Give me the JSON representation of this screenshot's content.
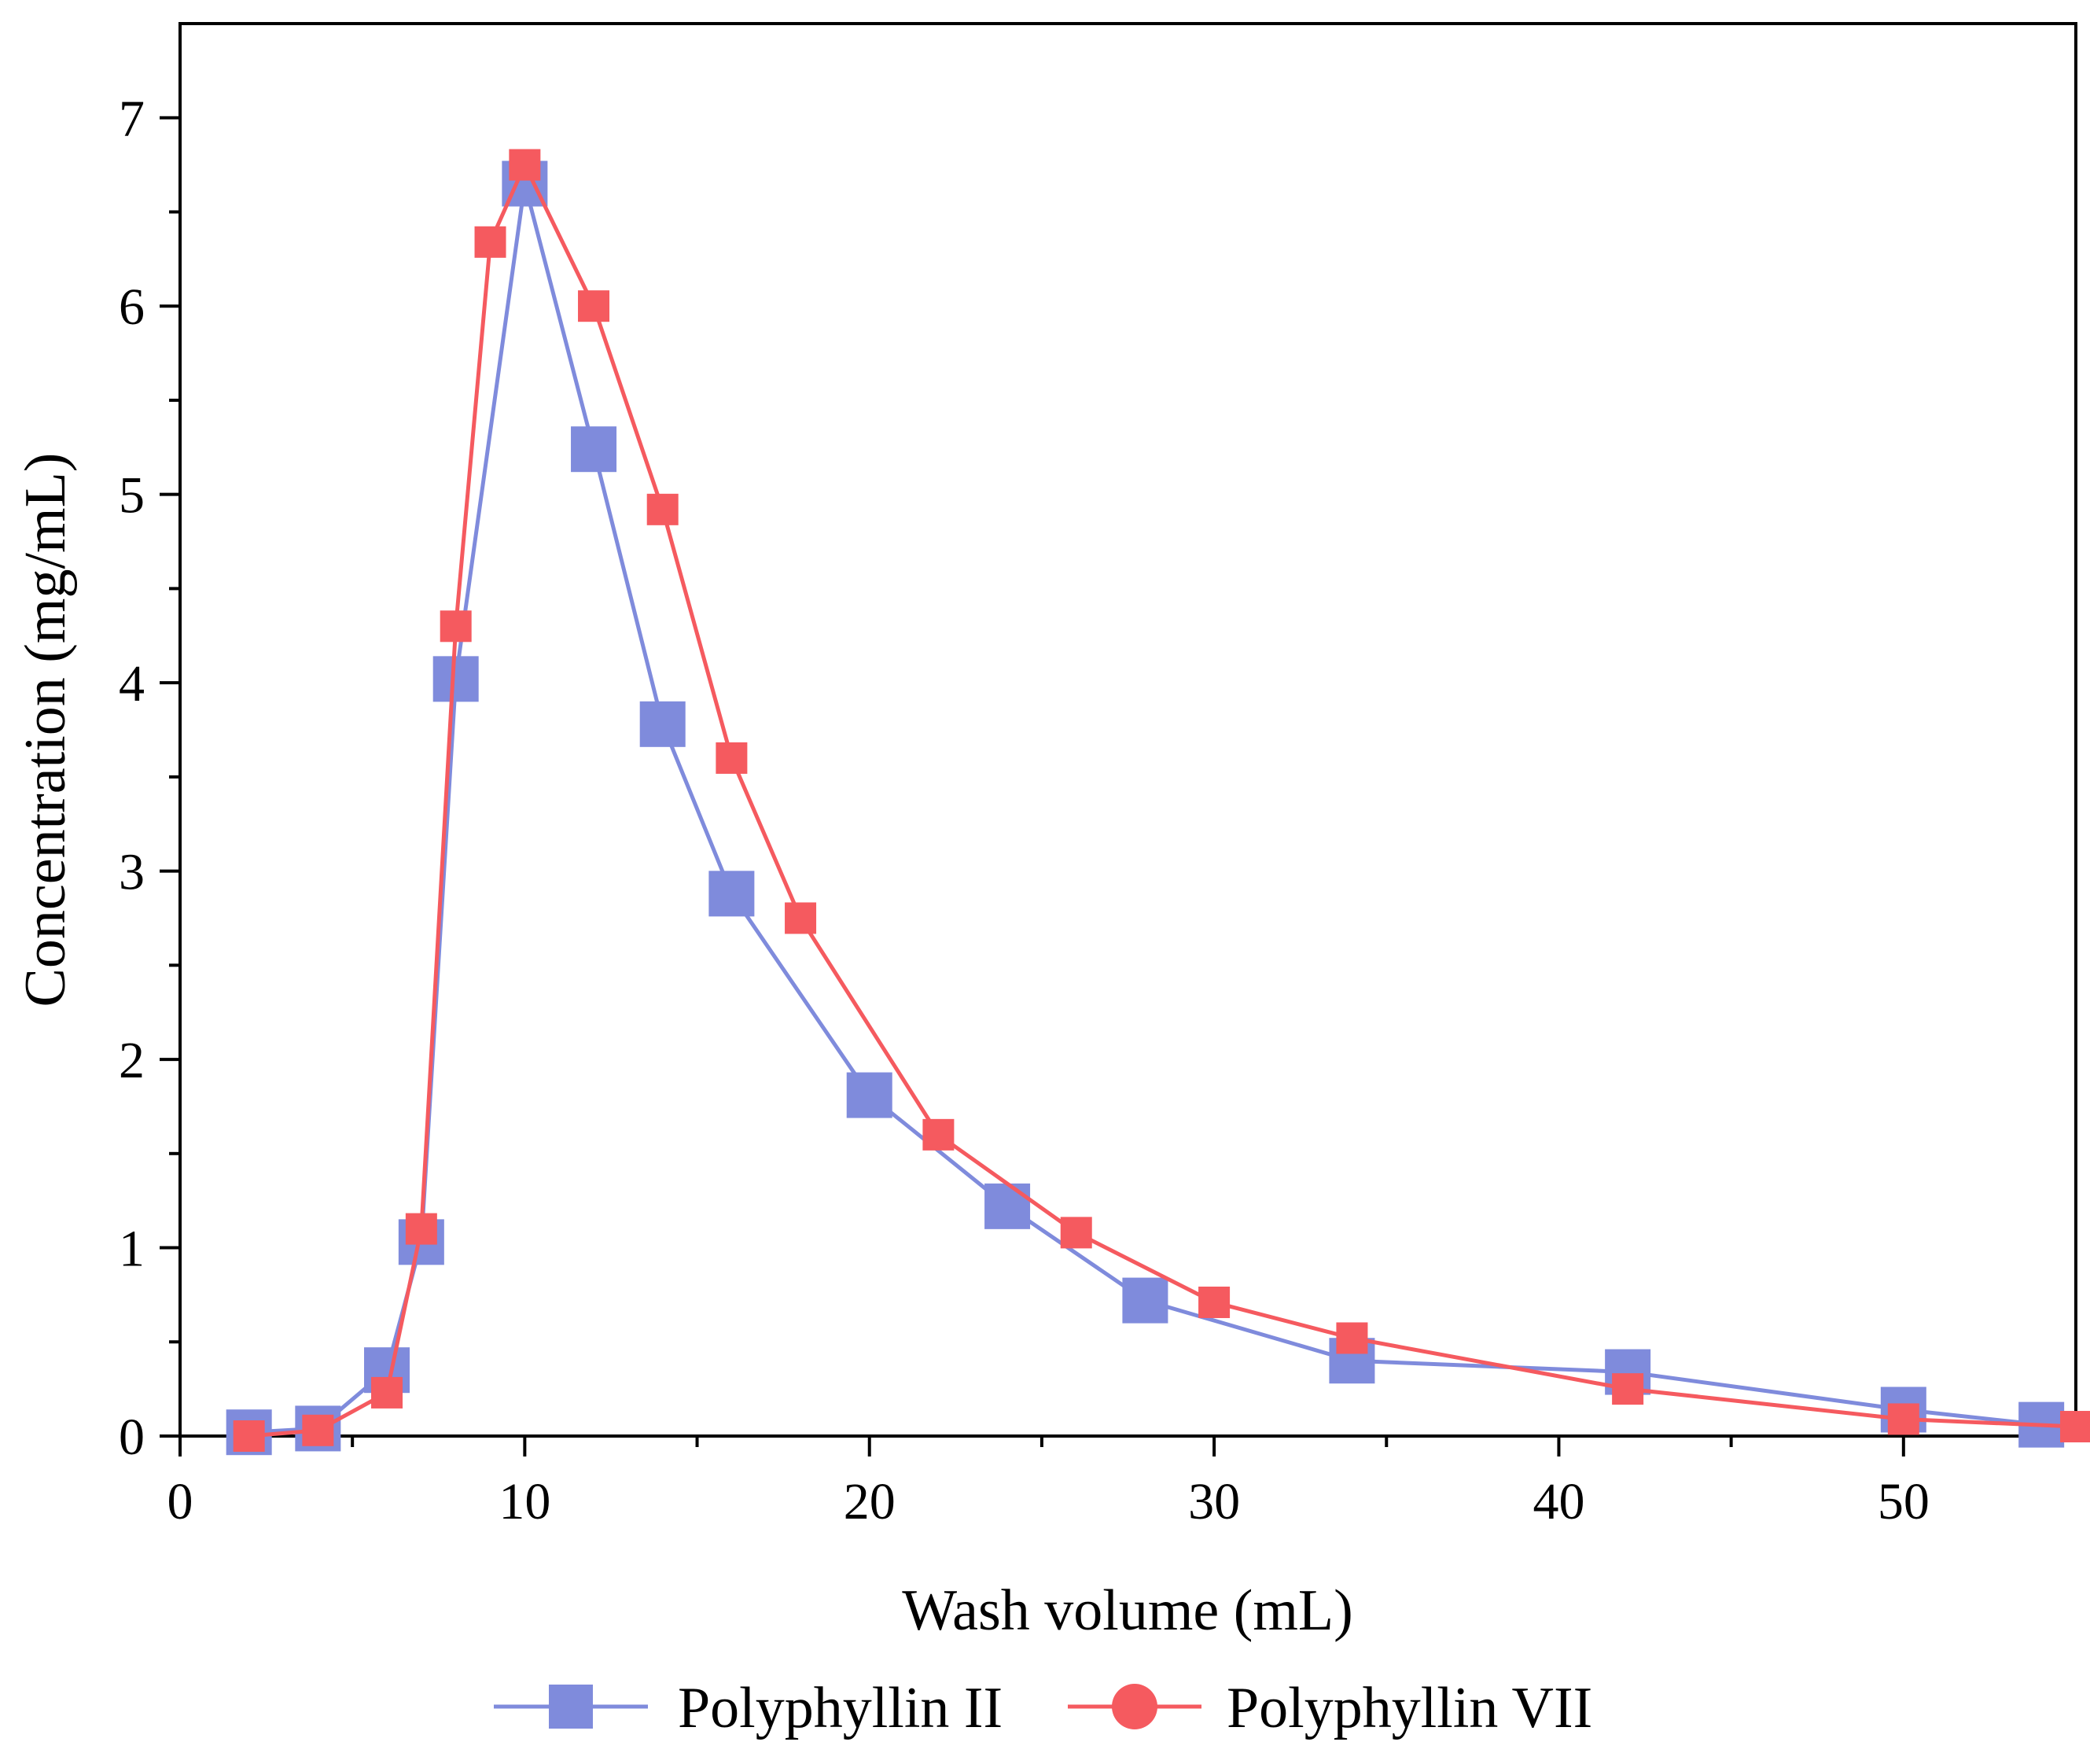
{
  "chart_data": {
    "type": "line",
    "title": "",
    "xlabel": "Wash volume (mL)",
    "ylabel": "Concentration (mg/mL)",
    "xlim": [
      0,
      55
    ],
    "ylim": [
      0,
      7.5
    ],
    "xticks": [
      0,
      10,
      20,
      30,
      40,
      50
    ],
    "xtick_labels": [
      "0",
      "10",
      "20",
      "30",
      "40",
      "50"
    ],
    "yticks": [
      0,
      1,
      2,
      3,
      4,
      5,
      6,
      7
    ],
    "ytick_labels": [
      "0",
      "1",
      "2",
      "3",
      "4",
      "5",
      "6",
      "7"
    ],
    "grid": false,
    "legend_position": "bottom",
    "series": [
      {
        "name": "Polyphyllin II",
        "color": "#7F8BDC",
        "marker": "square",
        "x": [
          2,
          4,
          6,
          7,
          8,
          10,
          12,
          14,
          16,
          20,
          24,
          28,
          34,
          42,
          50,
          54
        ],
        "y": [
          0.02,
          0.04,
          0.35,
          1.03,
          4.02,
          6.65,
          5.24,
          3.78,
          2.88,
          1.81,
          1.22,
          0.72,
          0.4,
          0.34,
          0.14,
          0.06
        ]
      },
      {
        "name": "Polyphyllin VII",
        "color": "#F55A5F",
        "marker": "circle",
        "x": [
          2,
          4,
          6,
          7,
          8,
          9,
          10,
          12,
          14,
          16,
          18,
          22,
          26,
          30,
          34,
          42,
          50,
          55
        ],
        "y": [
          0.0,
          0.03,
          0.23,
          1.1,
          4.3,
          6.34,
          6.75,
          6.0,
          4.92,
          3.6,
          2.75,
          1.6,
          1.08,
          0.71,
          0.52,
          0.25,
          0.09,
          0.05
        ]
      }
    ]
  }
}
